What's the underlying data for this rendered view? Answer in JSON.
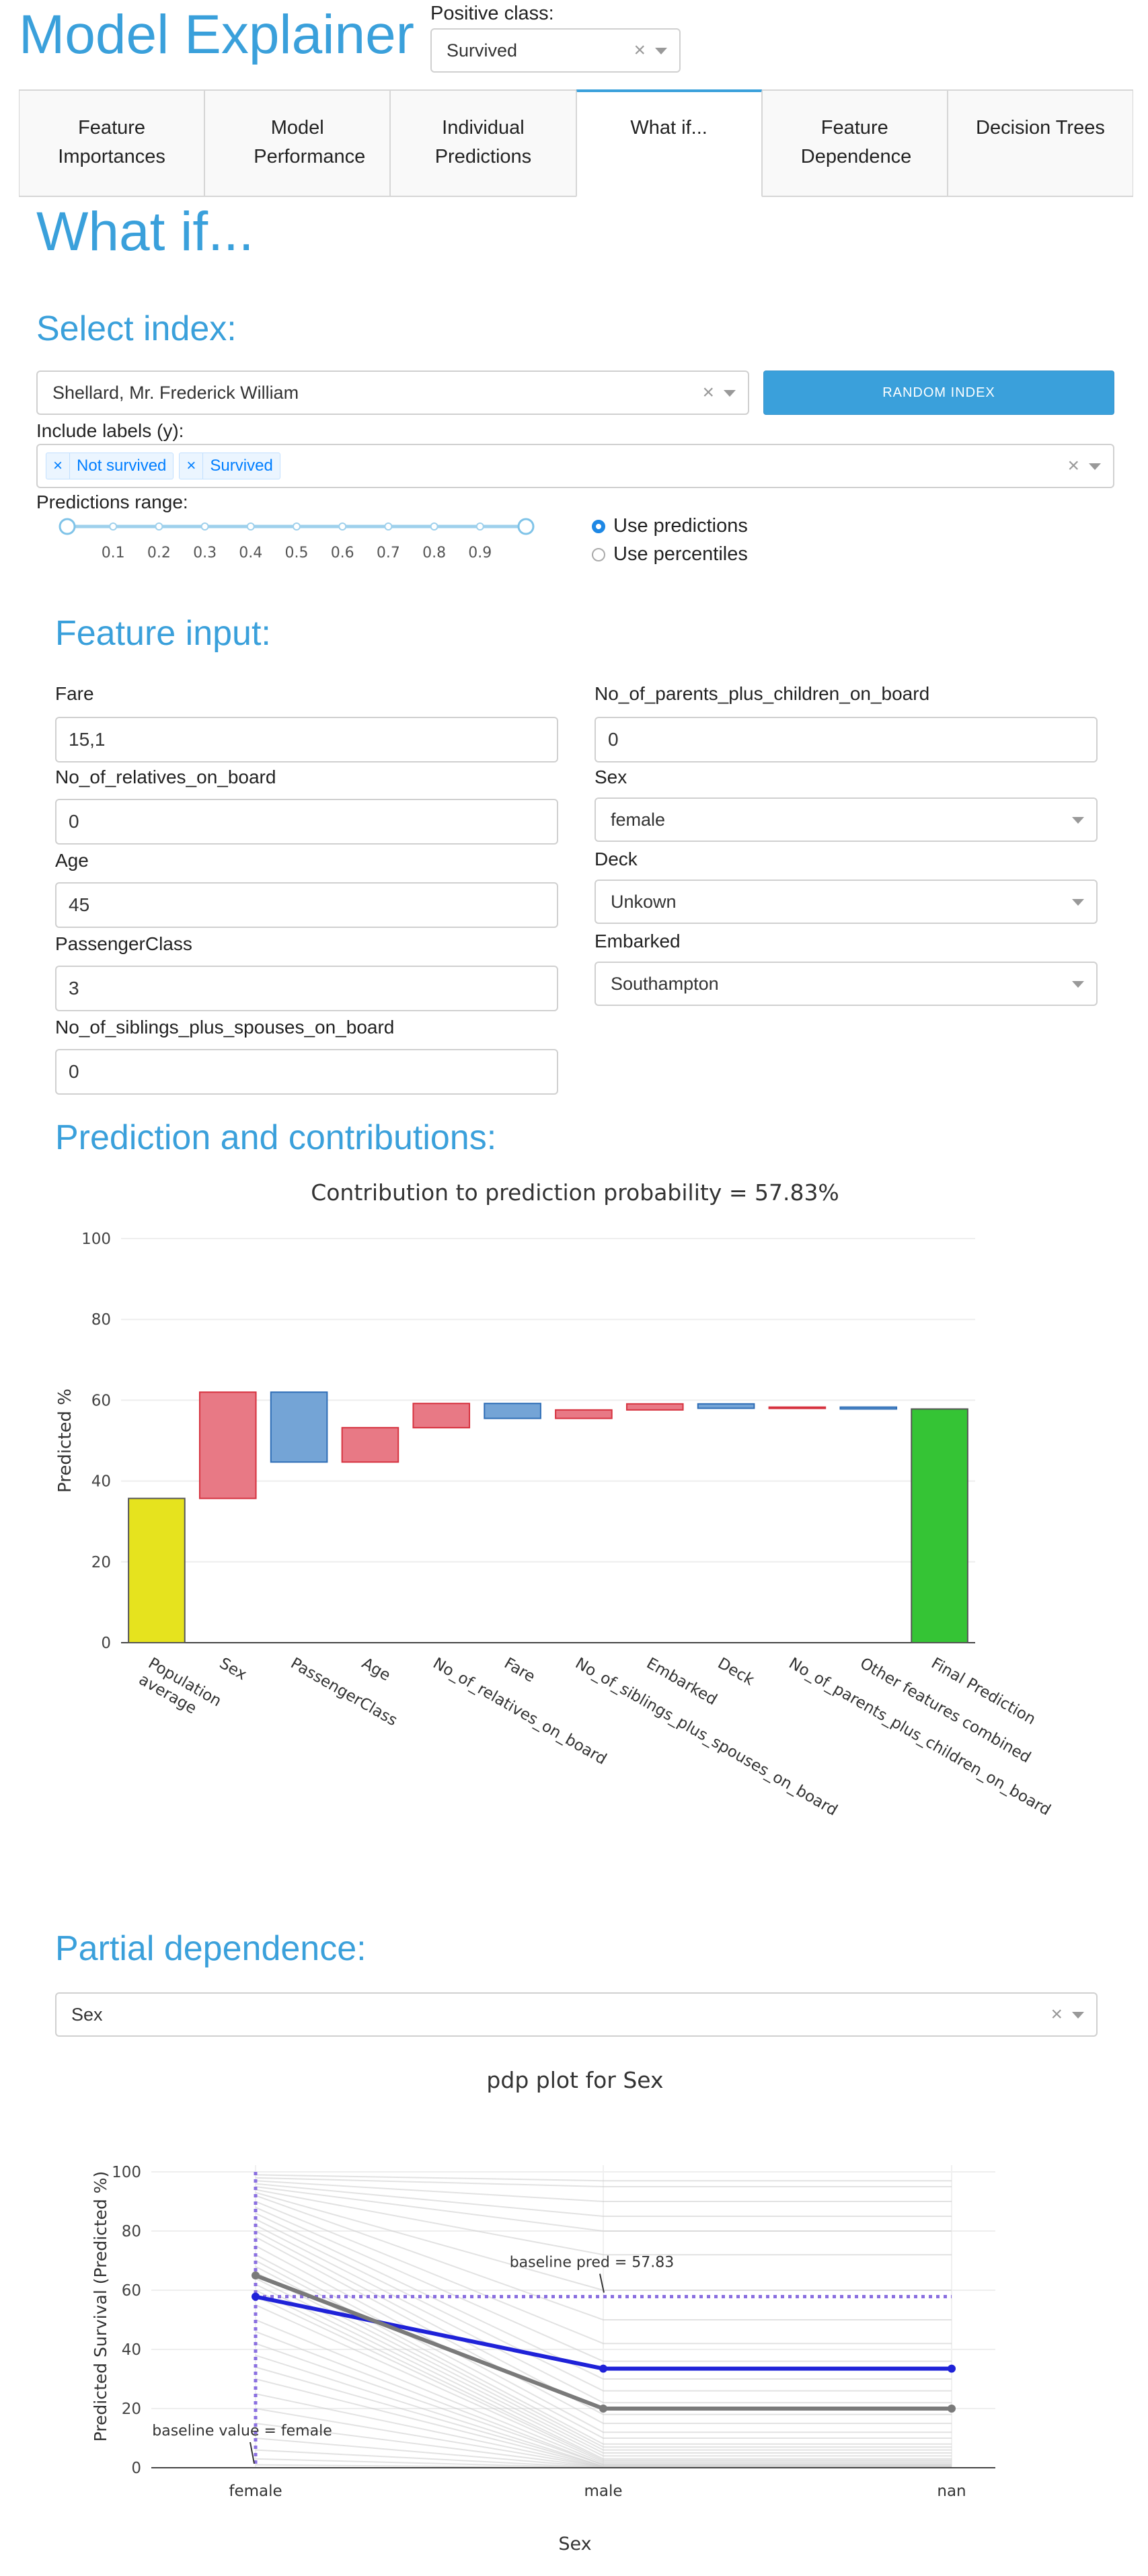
{
  "header": {
    "title": "Model Explainer",
    "positive_class_label": "Positive class:",
    "positive_class_value": "Survived",
    "clear_glyph": "×"
  },
  "tabs": [
    {
      "label": "Feature Importances"
    },
    {
      "label": "Model Performance"
    },
    {
      "label": "Individual Predictions"
    },
    {
      "label": "What if..."
    },
    {
      "label": "Feature Dependence"
    },
    {
      "label": "Decision Trees"
    }
  ],
  "whatif": {
    "heading": "What if...",
    "select_index_heading": "Select index:",
    "index_value": "Shellard, Mr. Frederick William",
    "random_button": "RANDOM INDEX",
    "include_labels": "Include labels (y):",
    "label_chips": [
      "Not survived",
      "Survived"
    ],
    "predictions_range": "Predictions range:",
    "slider_ticks": [
      "0.1",
      "0.2",
      "0.3",
      "0.4",
      "0.5",
      "0.6",
      "0.7",
      "0.8",
      "0.9"
    ],
    "slider_range": [
      0,
      1
    ],
    "radio_use_predictions": "Use predictions",
    "radio_use_percentiles": "Use percentiles"
  },
  "feature_input": {
    "heading": "Feature input:",
    "fare_label": "Fare",
    "fare_value": "15,1",
    "relatives_label": "No_of_relatives_on_board",
    "relatives_value": "0",
    "age_label": "Age",
    "age_value": "45",
    "pclass_label": "PassengerClass",
    "pclass_value": "3",
    "siblings_label": "No_of_siblings_plus_spouses_on_board",
    "siblings_value": "0",
    "parents_label": "No_of_parents_plus_children_on_board",
    "parents_value": "0",
    "sex_label": "Sex",
    "sex_value": "female",
    "deck_label": "Deck",
    "deck_value": "Unkown",
    "embarked_label": "Embarked",
    "embarked_value": "Southampton"
  },
  "contributions": {
    "heading": "Prediction and contributions:"
  },
  "partial_dependence": {
    "heading": "Partial dependence:",
    "feature_value": "Sex"
  },
  "chart_data": [
    {
      "type": "bar",
      "subtype": "waterfall",
      "title": "Contribution to prediction probability = 57.83%",
      "ylabel": "Predicted %",
      "xlabel": "",
      "ylim": [
        0,
        100
      ],
      "yticks": [
        0,
        20,
        40,
        60,
        80,
        100
      ],
      "grid": true,
      "categories": [
        "Population average",
        "Sex",
        "PassengerClass",
        "Age",
        "No_of_relatives_on_board",
        "Fare",
        "No_of_siblings_plus_spouses_on_board",
        "Embarked",
        "Deck",
        "No_of_parents_plus_children_on_board",
        "Other features combined",
        "Final Prediction"
      ],
      "bars": [
        {
          "base": 0,
          "top": 35.7,
          "kind": "total"
        },
        {
          "base": 35.7,
          "top": 62.0,
          "kind": "positive"
        },
        {
          "base": 62.0,
          "top": 44.7,
          "kind": "negative"
        },
        {
          "base": 44.7,
          "top": 53.2,
          "kind": "positive"
        },
        {
          "base": 53.2,
          "top": 59.2,
          "kind": "positive"
        },
        {
          "base": 59.2,
          "top": 55.5,
          "kind": "negative"
        },
        {
          "base": 55.5,
          "top": 57.6,
          "kind": "positive"
        },
        {
          "base": 57.6,
          "top": 59.1,
          "kind": "positive"
        },
        {
          "base": 59.1,
          "top": 58.0,
          "kind": "negative"
        },
        {
          "base": 58.0,
          "top": 58.3,
          "kind": "positive"
        },
        {
          "base": 58.3,
          "top": 57.83,
          "kind": "negative"
        },
        {
          "base": 0,
          "top": 57.83,
          "kind": "final"
        }
      ],
      "colors": {
        "total": "#e6e31e",
        "positive": "#e87985",
        "negative": "#74a4d6",
        "final": "#35c435",
        "positive_edge": "#d6323f",
        "negative_edge": "#2e6db6"
      }
    },
    {
      "type": "line",
      "title": "pdp plot for Sex",
      "xlabel": "Sex",
      "ylabel": "Predicted Survival (Predicted %)",
      "categories": [
        "female",
        "male",
        "nan"
      ],
      "ylim": [
        0,
        100
      ],
      "yticks": [
        0,
        20,
        40,
        60,
        80,
        100
      ],
      "series": [
        {
          "role": "index",
          "values": [
            57.83,
            33.5,
            33.5
          ],
          "color": "#1f22d8"
        },
        {
          "role": "average",
          "values": [
            65.0,
            20.0,
            20.0
          ],
          "color": "#7a7a7a"
        }
      ],
      "ice_lines_female": [
        99,
        98,
        97,
        96,
        95,
        94,
        93,
        92,
        90,
        88,
        86,
        84,
        82,
        80,
        78,
        75,
        72,
        70,
        68,
        66,
        64,
        62,
        60,
        58,
        55,
        50,
        46,
        42,
        38,
        34,
        30,
        25,
        20,
        15,
        10,
        6,
        3,
        1
      ],
      "ice_lines_male": [
        97,
        95,
        90,
        85,
        80,
        72,
        60,
        50,
        42,
        36,
        30,
        26,
        22,
        18,
        15,
        12,
        10,
        8,
        7,
        6,
        5,
        4,
        3,
        2.5,
        2,
        1.5,
        1,
        1,
        0.5,
        0.5,
        0.3,
        0.2,
        0.2,
        0.1,
        0.1,
        0,
        0,
        0
      ],
      "baseline_pred": 57.83,
      "baseline_value": "female",
      "annotations": [
        "baseline pred = 57.83",
        "baseline value = female"
      ]
    }
  ]
}
